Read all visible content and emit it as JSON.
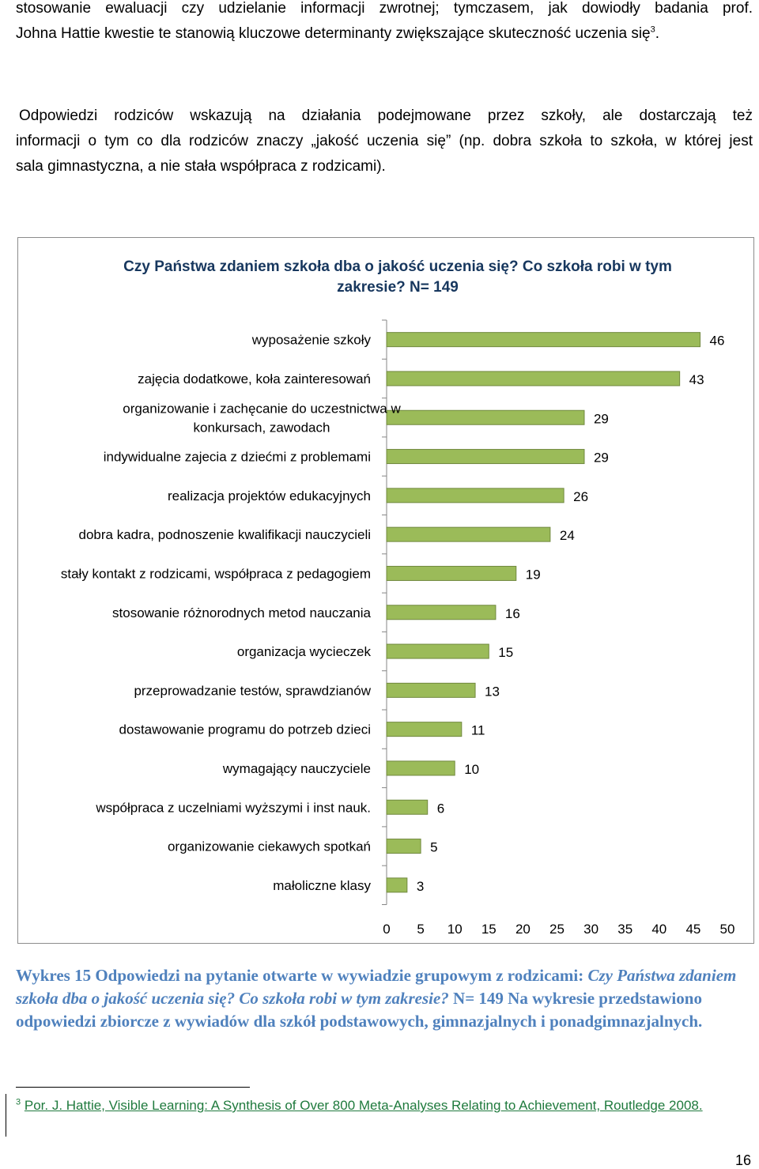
{
  "intro": {
    "line1": "stosowanie ewaluacji czy udzielanie informacji zwrotnej; tymczasem, jak dowiodły badania prof.",
    "line2": "Johna Hattie kwestie te stanowią kluczowe determinanty zwiększające skuteczność uczenia się",
    "footnote_ref": "3",
    "line2_end": "."
  },
  "paragraph2": {
    "line1": "Odpowiedzi rodziców wskazują na działania podejmowane przez szkoły, ale dostarczają też",
    "line2": "informacji o tym co dla rodziców znaczy „jakość uczenia się” (np. dobra szkoła to szkoła, w której jest",
    "line3": "sala gimnastyczna, a nie stała współpraca z rodzicami)."
  },
  "chart_data": {
    "type": "bar",
    "orientation": "horizontal",
    "title": "Czy Państwa zdaniem szkoła dba o jakość uczenia się? Co szkoła robi w tym zakresie? N= 149",
    "categories": [
      "wyposażenie szkoły",
      "zajęcia dodatkowe, koła zainteresowań",
      "organizowanie i zachęcanie do uczestnictwa w konkursach, zawodach",
      "indywidualne zajecia z dziećmi z problemami",
      "realizacja projektów edukacyjnych",
      "dobra kadra, podnoszenie kwalifikacji nauczycieli",
      "stały kontakt z rodzicami, współpraca z pedagogiem",
      "stosowanie różnorodnych metod nauczania",
      "organizacja wycieczek",
      "przeprowadzanie testów, sprawdzianów",
      "dostawowanie programu do potrzeb dzieci",
      "wymagający nauczyciele",
      "współpraca z uczelniami wyższymi i inst nauk.",
      "organizowanie ciekawych spotkań",
      "małoliczne klasy"
    ],
    "category_lines": [
      [
        "wyposażenie szkoły"
      ],
      [
        "zajęcia dodatkowe, koła zainteresowań"
      ],
      [
        "organizowanie i zachęcanie do uczestnictwa w",
        "konkursach, zawodach"
      ],
      [
        "indywidualne zajecia z dziećmi z problemami"
      ],
      [
        "realizacja projektów edukacyjnych"
      ],
      [
        "dobra kadra, podnoszenie kwalifikacji nauczycieli"
      ],
      [
        "stały kontakt z rodzicami, współpraca z pedagogiem"
      ],
      [
        "stosowanie różnorodnych metod nauczania"
      ],
      [
        "organizacja wycieczek"
      ],
      [
        "przeprowadzanie testów, sprawdzianów"
      ],
      [
        "dostawowanie programu do potrzeb dzieci"
      ],
      [
        "wymagający nauczyciele"
      ],
      [
        "współpraca z uczelniami wyższymi i inst nauk."
      ],
      [
        "organizowanie ciekawych spotkań"
      ],
      [
        "małoliczne klasy"
      ]
    ],
    "values": [
      46,
      43,
      29,
      29,
      26,
      24,
      19,
      16,
      15,
      13,
      11,
      10,
      6,
      5,
      3
    ],
    "xlim": [
      0,
      50
    ],
    "xticks": [
      0,
      5,
      10,
      15,
      20,
      25,
      30,
      35,
      40,
      45,
      50
    ],
    "grid": false,
    "legend": "none",
    "bar_color": "#9bbb59",
    "bar_edge_color": "#71893f"
  },
  "caption": {
    "prefix": "Wykres 15 Odpowiedzi na pytanie otwarte w wywiadzie grupowym z rodzicami:",
    "question": "Czy Państwa zdaniem szkoła dba o jakość uczenia się? Co szkoła robi w tym zakresie?",
    "n": "N= 149",
    "note": "Na wykresie przedstawiono odpowiedzi zbiorcze z wywiadów dla szkół podstawowych, gimnazjalnych i ponadgimnazjalnych."
  },
  "footnote": {
    "number": "3",
    "text": "Por. J. Hattie, Visible Learning: A Synthesis of Over 800 Meta-Analyses Relating to Achievement, Routledge 2008."
  },
  "page_number": "16",
  "colors": {
    "chart_title": "#17375e",
    "caption": "#4f81bd",
    "footnote": "#1f7a3d"
  }
}
